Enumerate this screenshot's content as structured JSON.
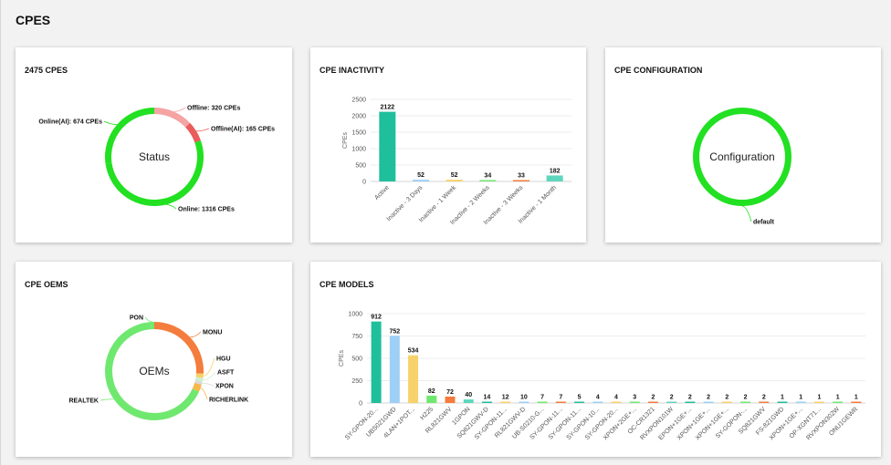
{
  "page": {
    "title": "CPES"
  },
  "colors": {
    "green": "#22e022",
    "light_green": "#6fe86f",
    "pink": "#f5a3a3",
    "red": "#e85c5c",
    "orange": "#f47c3c",
    "teal": "#1fbf9c",
    "blue": "#9ecff5",
    "yellow": "#f7d26a",
    "light_teal": "#5ed6bd"
  },
  "status_card": {
    "title": "2475 CPES",
    "chart_data": {
      "type": "pie",
      "center_label": "Status",
      "slices": [
        {
          "label": "Offline: 320 CPEs",
          "value": 320,
          "color": "#f5a3a3"
        },
        {
          "label": "Offline(AI): 165 CPEs",
          "value": 165,
          "color": "#e85c5c"
        },
        {
          "label": "Online: 1316 CPEs",
          "value": 1316,
          "color": "#22e022"
        },
        {
          "label": "Online(AI): 674 CPEs",
          "value": 674,
          "color": "#22e022"
        }
      ]
    }
  },
  "inactivity_card": {
    "title": "CPE INACTIVITY",
    "chart_data": {
      "type": "bar",
      "ylabel": "CPEs",
      "ylim": [
        0,
        2500
      ],
      "yticks": [
        "0",
        "500",
        "1000",
        "1500",
        "2000",
        "2500"
      ],
      "categories": [
        "Active",
        "Inactive - 3 Days",
        "Inactive - 1 Week",
        "Inactive - 2 Weeks",
        "Inactive - 3 Weeks",
        "Inactive - 1 Month"
      ],
      "values": [
        2122,
        52,
        52,
        34,
        33,
        182
      ],
      "value_labels": [
        "2122",
        "52",
        "52",
        "34",
        "33",
        "182"
      ]
    }
  },
  "config_card": {
    "title": "CPE CONFIGURATION",
    "chart_data": {
      "type": "pie",
      "center_label": "Configuration",
      "slices": [
        {
          "label": "default",
          "value": 2475,
          "color": "#22e022"
        }
      ]
    }
  },
  "oems_card": {
    "title": "CPE OEMS",
    "chart_data": {
      "type": "pie",
      "center_label": "OEMs",
      "slices": [
        {
          "label": "MONU",
          "value": 640,
          "color": "#f47c3c"
        },
        {
          "label": "HGU",
          "value": 35,
          "color": "#f7d26a"
        },
        {
          "label": "ASFT",
          "value": 30,
          "color": "#cfeecf"
        },
        {
          "label": "XPON",
          "value": 25,
          "color": "#d9d9d9"
        },
        {
          "label": "RICHERLINK",
          "value": 60,
          "color": "#f6b84a"
        },
        {
          "label": "REALTEK",
          "value": 1655,
          "color": "#6fe86f"
        },
        {
          "label": "PON",
          "value": 30,
          "color": "#6fe86f"
        }
      ]
    }
  },
  "models_card": {
    "title": "CPE MODELS",
    "chart_data": {
      "type": "bar",
      "ylabel": "CPEs",
      "ylim": [
        0,
        1000
      ],
      "yticks": [
        "0",
        "250",
        "500",
        "750",
        "1000"
      ],
      "categories": [
        "SY-GPON-20...",
        "UBS021GWD",
        "4LAN+1POT...",
        "H225",
        "RL821GWV",
        "1GPON",
        "SQ821GWV-D",
        "SY-GPON-11...",
        "RL821GWV-D",
        "UB-S0210-G...",
        "SY-GPON-11...",
        "SY-GPON-11...",
        "SY-GPON-10...",
        "SY-GPON-20...",
        "XPON+2GE+...",
        "OC-CR1321",
        "RVXPON101W",
        "EPON+1GE+...",
        "XPON+1GE+...",
        "XPON+1GE+...",
        "SY-GOPON-...",
        "SQ821GWV",
        "FS-821GWD",
        "XPON+1GE+...",
        "OP-XGNT71...",
        "RVXPON302W",
        "ONU1GEWR"
      ],
      "values": [
        912,
        752,
        534,
        82,
        72,
        40,
        14,
        12,
        10,
        7,
        7,
        5,
        4,
        4,
        3,
        2,
        2,
        2,
        2,
        2,
        2,
        2,
        1,
        1,
        1,
        1,
        1
      ],
      "value_labels": [
        "912",
        "752",
        "534",
        "82",
        "72",
        "40",
        "14",
        "12",
        "10",
        "7",
        "7",
        "5",
        "4",
        "4",
        "3",
        "2",
        "2",
        "2",
        "2",
        "2",
        "2",
        "2",
        "1",
        "1",
        "1",
        "1",
        "1"
      ],
      "bar_colors": [
        "#1fbf9c",
        "#9ecff5",
        "#f7d26a",
        "#6fe86f",
        "#f47c3c",
        "#5ed6bd",
        "#1fbf9c",
        "#f7d26a",
        "#9ecff5",
        "#6fe86f",
        "#f47c3c",
        "#1fbf9c",
        "#9ecff5",
        "#f7d26a",
        "#6fe86f",
        "#f47c3c",
        "#5ed6bd",
        "#1fbf9c",
        "#9ecff5",
        "#f7d26a",
        "#6fe86f",
        "#f47c3c",
        "#1fbf9c",
        "#9ecff5",
        "#f7d26a",
        "#6fe86f",
        "#f47c3c"
      ]
    }
  }
}
